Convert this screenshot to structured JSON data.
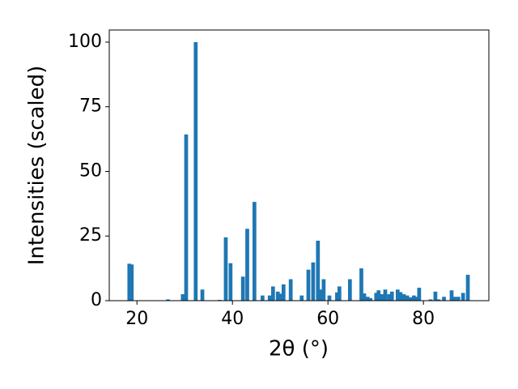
{
  "chart_data": {
    "type": "bar",
    "xlabel": "2θ (°)",
    "ylabel": "Intensities (scaled)",
    "color": "#1f77b4",
    "bar_width": 0.8,
    "x": [
      18.4,
      18.9,
      26.5,
      29.6,
      30.3,
      32.3,
      33.7,
      37.3,
      38.6,
      39.6,
      42.2,
      43.1,
      44.6,
      46.3,
      47.8,
      48.5,
      49.5,
      50.1,
      50.7,
      52.2,
      54.5,
      55.9,
      56.9,
      57.9,
      58.4,
      59.1,
      60.3,
      61.9,
      62.4,
      64.6,
      67.0,
      67.6,
      68.3,
      68.9,
      70.1,
      70.6,
      71.3,
      72.0,
      72.8,
      73.4,
      74.6,
      75.2,
      75.9,
      76.6,
      77.3,
      78.0,
      78.6,
      79.1,
      81.5,
      82.5,
      83.2,
      84.3,
      85.9,
      86.5,
      87.3,
      88.3,
      89.3
    ],
    "values": [
      14.3,
      14,
      0.5,
      2.5,
      64.3,
      100,
      4.3,
      0.3,
      24.5,
      14.5,
      9.3,
      27.8,
      38.2,
      2,
      2,
      5.5,
      3.5,
      2.7,
      6.3,
      8.3,
      2,
      12,
      14.8,
      23.2,
      4.3,
      8.3,
      2,
      3.2,
      5.5,
      8.3,
      12.5,
      2.8,
      1.5,
      1,
      3,
      4,
      2.5,
      4.3,
      2.5,
      3.5,
      4.3,
      3.3,
      2.5,
      2,
      1.3,
      2,
      1.5,
      5,
      0.5,
      3.5,
      0.5,
      1.5,
      4,
      1.5,
      1.5,
      3,
      10
    ],
    "xlim": [
      14.2,
      93.7
    ],
    "ylim": [
      0,
      104.7
    ],
    "xticks": [
      20,
      40,
      60,
      80
    ],
    "yticks": [
      0,
      25,
      50,
      75,
      100
    ],
    "grid": false
  }
}
